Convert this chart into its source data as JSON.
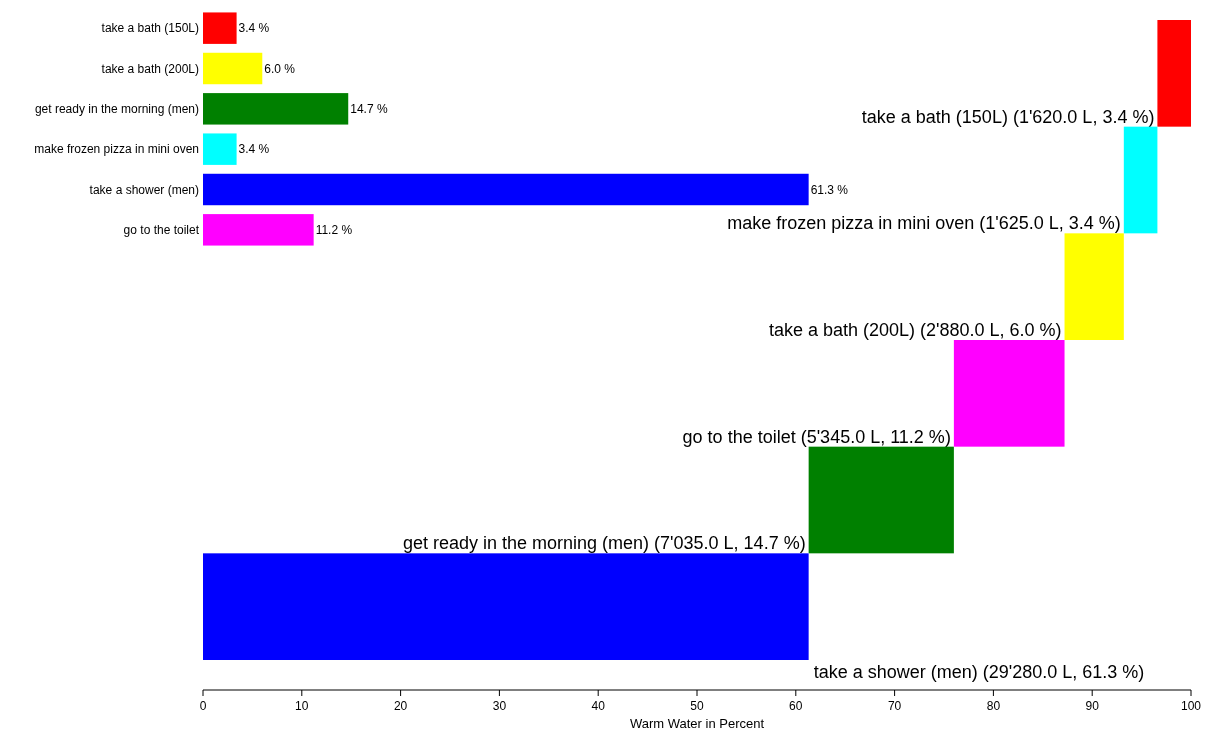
{
  "chart_data": [
    {
      "type": "bar",
      "orientation": "horizontal",
      "categories": [
        null,
        null,
        null,
        null,
        null,
        null
      ],
      "values": [
        3.4,
        3.4,
        6.0,
        11.2,
        14.7,
        61.3
      ],
      "base": [
        96.6,
        93.2,
        87.2,
        76.0,
        61.3,
        0
      ],
      "colors": [
        "#ff0000",
        "#00ffff",
        "#ffff00",
        "#ff00ff",
        "#008000",
        "#0000ff"
      ],
      "value_labels": [
        "take a bath (150L) (1'620.0 L, 3.4 %)",
        "make frozen pizza in mini oven (1'625.0 L, 3.4 %)",
        "take a bath (200L) (2'880.0 L, 6.0 %)",
        "go to the toilet (5'345.0 L, 11.2 %)",
        "get ready in the morning (men) (7'035.0 L, 14.7 %)",
        "take a shower (men) (29'280.0 L, 61.3 %)"
      ],
      "xlim": [
        0,
        100
      ],
      "xticks": [
        0,
        10,
        20,
        30,
        40,
        50,
        60,
        70,
        80,
        90,
        100
      ],
      "xlabel": "Warm Water in Percent"
    },
    {
      "type": "bar",
      "orientation": "horizontal",
      "categories": [
        "take a bath (150L)",
        "take a bath (200L)",
        "get ready in the morning (men)",
        "make frozen pizza in mini oven",
        "take a shower (men)",
        "go to the toilet"
      ],
      "values": [
        3.4,
        6.0,
        14.7,
        3.4,
        61.3,
        11.2
      ],
      "colors": [
        "#ff0000",
        "#ffff00",
        "#008000",
        "#00ffff",
        "#0000ff",
        "#ff00ff"
      ],
      "value_labels": [
        "3.4 %",
        "6.0 %",
        "14.7 %",
        "3.4 %",
        "61.3 %",
        "11.2 %"
      ],
      "xlim": [
        0,
        100
      ],
      "tick_labels": "y"
    }
  ]
}
